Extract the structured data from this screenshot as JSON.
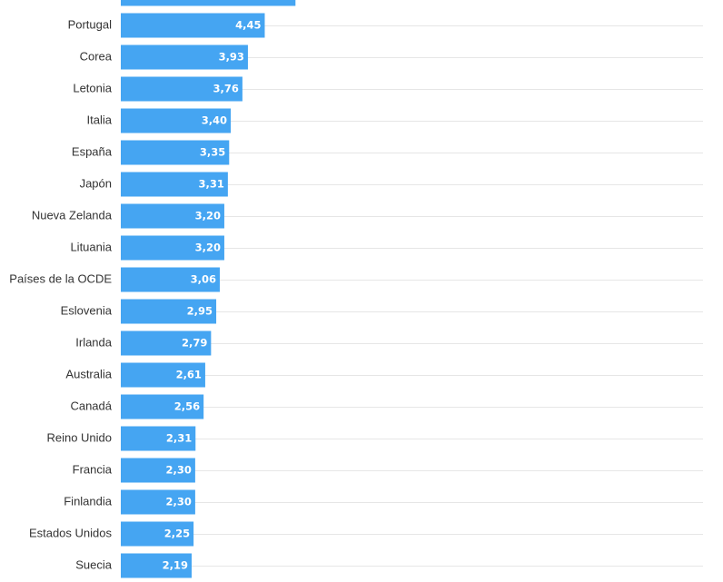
{
  "chart_data": {
    "type": "bar",
    "orientation": "horizontal",
    "grid": true,
    "bar_color": "#45a5f2",
    "value_label_color": "#ffffff",
    "xlim": [
      0,
      18
    ],
    "categories": [
      "",
      "Portugal",
      "Corea",
      "Letonia",
      "Italia",
      "España",
      "Japón",
      "Nueva Zelanda",
      "Lituania",
      "Países de la OCDE",
      "Eslovenia",
      "Irlanda",
      "Australia",
      "Canadá",
      "Reino Unido",
      "Francia",
      "Finlandia",
      "Estados Unidos",
      "Suecia"
    ],
    "values": [
      5.4,
      4.45,
      3.93,
      3.76,
      3.4,
      3.35,
      3.31,
      3.2,
      3.2,
      3.06,
      2.95,
      2.79,
      2.61,
      2.56,
      2.31,
      2.3,
      2.3,
      2.25,
      2.19
    ],
    "value_labels": [
      "",
      "4,45",
      "3,93",
      "3,76",
      "3,40",
      "3,35",
      "3,31",
      "3,20",
      "3,20",
      "3,06",
      "2,95",
      "2,79",
      "2,61",
      "2,56",
      "2,31",
      "2,30",
      "2,30",
      "2,25",
      "2,19"
    ]
  }
}
